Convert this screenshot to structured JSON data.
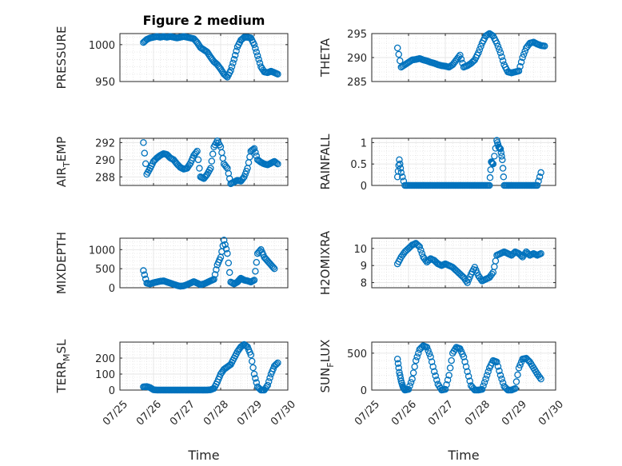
{
  "figure": {
    "title": "Figure 2 medium"
  },
  "style": {
    "marker_color": "#0072BD",
    "axis_color": "#262626",
    "grid_color": "#dcdcdc"
  },
  "chart_data": [
    {
      "type": "scatter",
      "title": "Figure 2 medium",
      "ylabel": "PRESSURE",
      "ylim": [
        950,
        1015
      ],
      "yticks": [
        950,
        1000
      ],
      "ytick_labels": [
        "950",
        "1000"
      ],
      "xlim": [
        0,
        5
      ],
      "show_xticklabels": false,
      "grid": "on, with minor grid",
      "x": [
        0.7,
        0.8,
        0.9,
        1,
        1.1,
        1.2,
        1.3,
        1.4,
        1.5,
        1.6,
        1.7,
        1.8,
        1.9,
        2,
        2.1,
        2.2,
        2.3,
        2.4,
        2.5,
        2.6,
        2.7,
        2.8,
        2.9,
        3,
        3.1,
        3.2,
        3.3,
        3.4,
        3.5,
        3.6,
        3.7,
        3.8,
        3.9,
        4,
        4.1,
        4.2,
        4.3,
        4.4,
        4.5,
        4.6,
        4.7
      ],
      "y": [
        1003,
        1007,
        1009,
        1010,
        1011,
        1010,
        1011,
        1010,
        1011,
        1010,
        1009,
        1010,
        1011,
        1010,
        1009,
        1008,
        1003,
        996,
        993,
        990,
        983,
        977,
        973,
        967,
        960,
        956,
        965,
        980,
        997,
        1006,
        1010,
        1010,
        1009,
        1000,
        985,
        970,
        963,
        962,
        964,
        962,
        960
      ]
    },
    {
      "type": "scatter",
      "ylabel": "THETA",
      "ylim": [
        285,
        295
      ],
      "yticks": [
        285,
        290,
        295
      ],
      "ytick_labels": [
        "285",
        "290",
        "295"
      ],
      "xlim": [
        0,
        5
      ],
      "show_xticklabels": false,
      "grid": "on, with minor grid",
      "x": [
        0.7,
        0.8,
        0.9,
        1,
        1.1,
        1.2,
        1.3,
        1.4,
        1.5,
        1.6,
        1.7,
        1.8,
        1.9,
        2,
        2.1,
        2.2,
        2.3,
        2.4,
        2.5,
        2.6,
        2.7,
        2.8,
        2.9,
        3,
        3.1,
        3.2,
        3.3,
        3.4,
        3.5,
        3.6,
        3.7,
        3.8,
        3.9,
        4,
        4.1,
        4.2,
        4.3,
        4.4,
        4.5,
        4.6,
        4.7
      ],
      "y": [
        292,
        288,
        288.5,
        289,
        289.5,
        289.6,
        289.8,
        289.5,
        289.3,
        289,
        288.8,
        288.5,
        288.3,
        288.2,
        288,
        288.5,
        289.5,
        290.5,
        288,
        288.3,
        288.8,
        289.5,
        291,
        293,
        294.5,
        295,
        294.5,
        293,
        291,
        288.5,
        287,
        286.8,
        287,
        287.2,
        290,
        292,
        293,
        293.2,
        292.8,
        292.5,
        292.4
      ]
    },
    {
      "type": "scatter",
      "ylabel": "AIR_TEMP",
      "ylim": [
        287,
        292.5
      ],
      "yticks": [
        288,
        290,
        292
      ],
      "ytick_labels": [
        "288",
        "290",
        "292"
      ],
      "xlim": [
        0,
        5
      ],
      "show_xticklabels": false,
      "grid": "on, with minor grid",
      "x": [
        0.7,
        0.8,
        0.9,
        1,
        1.1,
        1.2,
        1.3,
        1.4,
        1.5,
        1.6,
        1.7,
        1.8,
        1.9,
        2,
        2.1,
        2.2,
        2.3,
        2.4,
        2.5,
        2.6,
        2.7,
        2.8,
        2.9,
        3,
        3.1,
        3.2,
        3.3,
        3.4,
        3.5,
        3.6,
        3.7,
        3.8,
        3.9,
        4,
        4.1,
        4.2,
        4.3,
        4.4,
        4.5,
        4.6,
        4.7
      ],
      "y": [
        292,
        288.3,
        289,
        289.8,
        290.2,
        290.5,
        290.7,
        290.6,
        290.2,
        290,
        289.5,
        289.1,
        288.9,
        289,
        289.6,
        290.5,
        291,
        288,
        287.8,
        288.3,
        289,
        291.5,
        292.2,
        291.5,
        289.5,
        289,
        287.2,
        287.4,
        287.6,
        287.5,
        288,
        289,
        291,
        291.3,
        290,
        289.7,
        289.5,
        289.4,
        289.6,
        289.8,
        289.5
      ]
    },
    {
      "type": "scatter",
      "ylabel": "RAINFALL",
      "ylim": [
        0,
        1.1
      ],
      "yticks": [
        0,
        0.5,
        1
      ],
      "ytick_labels": [
        "0",
        "0.5",
        "1"
      ],
      "xlim": [
        0,
        5
      ],
      "show_xticklabels": false,
      "grid": "on, with minor grid",
      "x": [
        0.7,
        0.75,
        0.8,
        0.9,
        1,
        1.1,
        1.2,
        1.3,
        1.4,
        1.5,
        1.6,
        1.7,
        1.8,
        1.9,
        2,
        2.1,
        2.2,
        2.3,
        2.4,
        2.5,
        2.6,
        2.7,
        2.8,
        2.9,
        3,
        3.1,
        3.2,
        3.25,
        3.3,
        3.4,
        3.45,
        3.5,
        3.55,
        3.6,
        3.7,
        3.8,
        3.9,
        4,
        4.1,
        4.2,
        4.3,
        4.4,
        4.5,
        4.6
      ],
      "y": [
        0.2,
        0.6,
        0.3,
        0,
        0,
        0,
        0,
        0,
        0,
        0,
        0,
        0,
        0,
        0,
        0,
        0,
        0,
        0,
        0,
        0,
        0,
        0,
        0,
        0,
        0,
        0,
        0,
        0.55,
        0.5,
        1.05,
        0.9,
        0.85,
        0.6,
        0,
        0,
        0,
        0,
        0,
        0,
        0,
        0,
        0,
        0,
        0.3
      ]
    },
    {
      "type": "scatter",
      "ylabel": "MIXDEPTH",
      "ylim": [
        0,
        1300
      ],
      "yticks": [
        0,
        500,
        1000
      ],
      "ytick_labels": [
        "0",
        "500",
        "1000"
      ],
      "xlim": [
        0,
        5
      ],
      "show_xticklabels": false,
      "grid": "on, with minor grid",
      "x": [
        0.7,
        0.8,
        0.9,
        1,
        1.1,
        1.2,
        1.3,
        1.4,
        1.5,
        1.6,
        1.7,
        1.8,
        1.9,
        2,
        2.1,
        2.2,
        2.3,
        2.4,
        2.5,
        2.6,
        2.7,
        2.8,
        2.9,
        3,
        3.1,
        3.2,
        3.3,
        3.4,
        3.5,
        3.55,
        3.6,
        3.7,
        3.8,
        3.9,
        4,
        4.1,
        4.2,
        4.3,
        4.4,
        4.5,
        4.6
      ],
      "y": [
        450,
        120,
        100,
        130,
        150,
        170,
        180,
        150,
        120,
        90,
        60,
        40,
        50,
        80,
        120,
        160,
        120,
        80,
        100,
        140,
        180,
        220,
        600,
        800,
        1250,
        900,
        150,
        100,
        150,
        200,
        250,
        200,
        180,
        150,
        200,
        900,
        1000,
        800,
        700,
        600,
        500
      ]
    },
    {
      "type": "scatter",
      "ylabel": "H2OMIXRA",
      "ylim": [
        7.7,
        10.6
      ],
      "yticks": [
        8,
        9,
        10
      ],
      "ytick_labels": [
        "8",
        "9",
        "10"
      ],
      "xlim": [
        0,
        5
      ],
      "show_xticklabels": false,
      "grid": "on, with minor grid",
      "x": [
        0.7,
        0.8,
        0.9,
        1,
        1.1,
        1.2,
        1.3,
        1.4,
        1.5,
        1.6,
        1.7,
        1.8,
        1.9,
        2,
        2.1,
        2.2,
        2.3,
        2.4,
        2.5,
        2.6,
        2.7,
        2.8,
        2.9,
        3,
        3.1,
        3.2,
        3.3,
        3.4,
        3.5,
        3.6,
        3.7,
        3.8,
        3.9,
        4,
        4.1,
        4.2,
        4.3,
        4.4,
        4.5,
        4.6
      ],
      "y": [
        9.1,
        9.5,
        9.8,
        10,
        10.2,
        10.3,
        10.1,
        9.5,
        9.2,
        9.4,
        9.3,
        9.1,
        9,
        9.1,
        9,
        8.9,
        8.7,
        8.5,
        8.3,
        8,
        8.5,
        8.9,
        8.4,
        8.1,
        8.2,
        8.3,
        8.6,
        9.6,
        9.7,
        9.8,
        9.7,
        9.6,
        9.8,
        9.7,
        9.5,
        9.8,
        9.6,
        9.7,
        9.6,
        9.7
      ]
    },
    {
      "type": "scatter",
      "ylabel": "TERR_MSL",
      "ylim": [
        0,
        300
      ],
      "yticks": [
        0,
        100,
        200
      ],
      "ytick_labels": [
        "0",
        "100",
        "200"
      ],
      "xlim": [
        0,
        5
      ],
      "xticks": [
        0,
        1,
        2,
        3,
        4,
        5
      ],
      "xtick_labels": [
        "07/25",
        "07/26",
        "07/27",
        "07/28",
        "07/29",
        "07/30"
      ],
      "xlabel": "Time",
      "grid": "on, with minor grid",
      "x": [
        0.7,
        0.8,
        0.9,
        1,
        1.1,
        1.2,
        1.3,
        1.4,
        1.5,
        1.6,
        1.7,
        1.8,
        1.9,
        2,
        2.1,
        2.2,
        2.3,
        2.4,
        2.5,
        2.6,
        2.7,
        2.8,
        2.9,
        3,
        3.1,
        3.2,
        3.3,
        3.4,
        3.5,
        3.6,
        3.7,
        3.8,
        3.9,
        4,
        4.1,
        4.2,
        4.3,
        4.4,
        4.5,
        4.6,
        4.7
      ],
      "y": [
        20,
        22,
        15,
        2,
        0,
        0,
        0,
        0,
        0,
        0,
        0,
        0,
        0,
        0,
        0,
        0,
        0,
        0,
        0,
        0,
        2,
        10,
        50,
        100,
        130,
        145,
        160,
        200,
        240,
        270,
        285,
        270,
        220,
        100,
        20,
        0,
        0,
        30,
        100,
        150,
        170
      ]
    },
    {
      "type": "scatter",
      "ylabel": "SUN_FLUX",
      "ylim": [
        0,
        650
      ],
      "yticks": [
        0,
        500
      ],
      "ytick_labels": [
        "0",
        "500"
      ],
      "xlim": [
        0,
        5
      ],
      "xticks": [
        0,
        1,
        2,
        3,
        4,
        5
      ],
      "xtick_labels": [
        "07/25",
        "07/26",
        "07/27",
        "07/28",
        "07/29",
        "07/30"
      ],
      "xlabel": "Time",
      "grid": "on, with minor grid",
      "x": [
        0.7,
        0.75,
        0.8,
        0.85,
        0.9,
        1,
        1.1,
        1.2,
        1.3,
        1.4,
        1.5,
        1.6,
        1.7,
        1.8,
        1.9,
        2,
        2.1,
        2.2,
        2.3,
        2.4,
        2.5,
        2.6,
        2.7,
        2.8,
        2.9,
        3,
        3.1,
        3.2,
        3.3,
        3.4,
        3.5,
        3.6,
        3.7,
        3.8,
        3.9,
        4,
        4.1,
        4.2,
        4.3,
        4.4,
        4.5,
        4.6
      ],
      "y": [
        420,
        240,
        120,
        40,
        0,
        10,
        150,
        400,
        550,
        600,
        580,
        450,
        250,
        80,
        0,
        10,
        200,
        500,
        580,
        560,
        450,
        250,
        60,
        0,
        0,
        10,
        150,
        300,
        400,
        380,
        200,
        50,
        0,
        0,
        20,
        300,
        420,
        430,
        380,
        300,
        220,
        150
      ]
    }
  ]
}
